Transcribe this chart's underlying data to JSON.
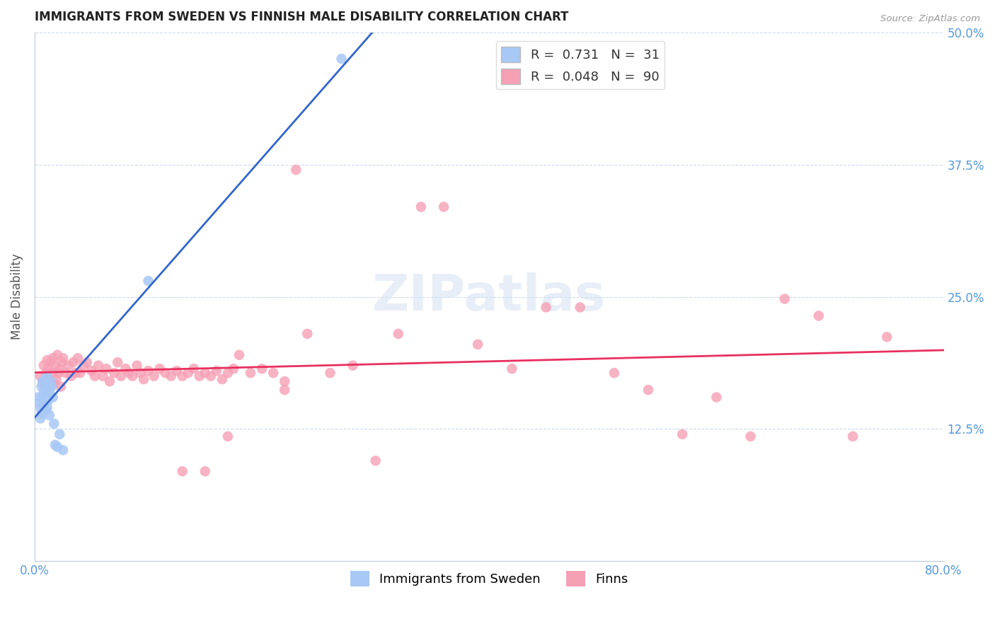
{
  "title": "IMMIGRANTS FROM SWEDEN VS FINNISH MALE DISABILITY CORRELATION CHART",
  "source": "Source: ZipAtlas.com",
  "ylabel": "Male Disability",
  "xlim": [
    0.0,
    0.8
  ],
  "ylim": [
    0.0,
    0.5
  ],
  "ytick_positions": [
    0.125,
    0.25,
    0.375,
    0.5
  ],
  "yticklabels": [
    "12.5%",
    "25.0%",
    "37.5%",
    "50.0%"
  ],
  "sweden_color": "#a8c8f5",
  "finland_color": "#f5a0b5",
  "sweden_line_color": "#3366cc",
  "finland_line_color": "#e83060",
  "sweden_x": [
    0.003,
    0.004,
    0.005,
    0.005,
    0.006,
    0.006,
    0.007,
    0.007,
    0.008,
    0.008,
    0.009,
    0.009,
    0.01,
    0.01,
    0.01,
    0.011,
    0.011,
    0.012,
    0.012,
    0.013,
    0.013,
    0.014,
    0.015,
    0.016,
    0.017,
    0.018,
    0.02,
    0.022,
    0.025,
    0.1,
    0.27
  ],
  "sweden_y": [
    0.155,
    0.15,
    0.145,
    0.135,
    0.165,
    0.14,
    0.17,
    0.155,
    0.16,
    0.148,
    0.158,
    0.168,
    0.162,
    0.172,
    0.143,
    0.175,
    0.145,
    0.165,
    0.152,
    0.16,
    0.138,
    0.17,
    0.165,
    0.155,
    0.13,
    0.11,
    0.108,
    0.12,
    0.105,
    0.265,
    0.475
  ],
  "finland_x": [
    0.005,
    0.007,
    0.008,
    0.009,
    0.01,
    0.011,
    0.012,
    0.013,
    0.014,
    0.015,
    0.016,
    0.017,
    0.018,
    0.019,
    0.02,
    0.021,
    0.022,
    0.023,
    0.024,
    0.025,
    0.027,
    0.03,
    0.032,
    0.034,
    0.036,
    0.038,
    0.04,
    0.043,
    0.046,
    0.05,
    0.053,
    0.056,
    0.06,
    0.063,
    0.066,
    0.07,
    0.073,
    0.076,
    0.08,
    0.083,
    0.086,
    0.09,
    0.093,
    0.096,
    0.1,
    0.105,
    0.11,
    0.115,
    0.12,
    0.125,
    0.13,
    0.135,
    0.14,
    0.145,
    0.15,
    0.155,
    0.16,
    0.165,
    0.17,
    0.175,
    0.18,
    0.19,
    0.2,
    0.21,
    0.22,
    0.23,
    0.24,
    0.26,
    0.28,
    0.3,
    0.32,
    0.34,
    0.36,
    0.39,
    0.42,
    0.45,
    0.48,
    0.51,
    0.54,
    0.57,
    0.6,
    0.63,
    0.66,
    0.69,
    0.72,
    0.75,
    0.22,
    0.17,
    0.15,
    0.13
  ],
  "finland_y": [
    0.175,
    0.168,
    0.185,
    0.165,
    0.178,
    0.19,
    0.182,
    0.17,
    0.188,
    0.178,
    0.192,
    0.168,
    0.185,
    0.172,
    0.195,
    0.178,
    0.182,
    0.165,
    0.188,
    0.192,
    0.178,
    0.185,
    0.175,
    0.188,
    0.178,
    0.192,
    0.178,
    0.185,
    0.188,
    0.18,
    0.175,
    0.185,
    0.175,
    0.182,
    0.17,
    0.178,
    0.188,
    0.175,
    0.182,
    0.178,
    0.175,
    0.185,
    0.178,
    0.172,
    0.18,
    0.175,
    0.182,
    0.178,
    0.175,
    0.18,
    0.175,
    0.178,
    0.182,
    0.175,
    0.178,
    0.175,
    0.18,
    0.172,
    0.178,
    0.182,
    0.195,
    0.178,
    0.182,
    0.178,
    0.17,
    0.37,
    0.215,
    0.178,
    0.185,
    0.095,
    0.215,
    0.335,
    0.335,
    0.205,
    0.182,
    0.24,
    0.24,
    0.178,
    0.162,
    0.12,
    0.155,
    0.118,
    0.248,
    0.232,
    0.118,
    0.212,
    0.162,
    0.118,
    0.085,
    0.085
  ]
}
